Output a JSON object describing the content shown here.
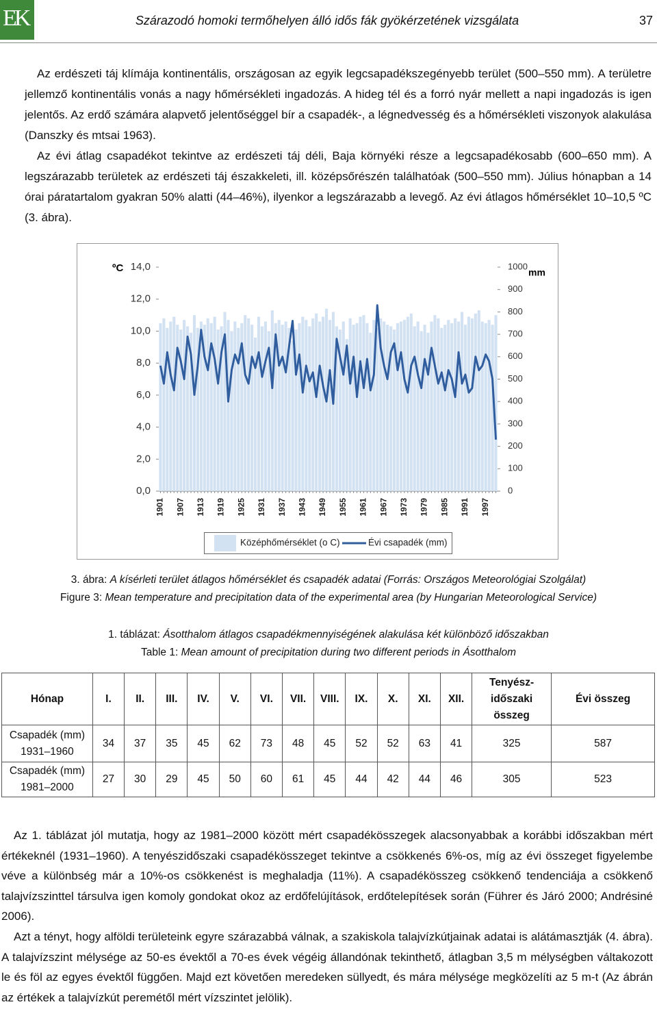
{
  "header": {
    "logo": "EK",
    "title": "Szárazodó homoki termőhelyen álló idős fák gyökérzetének vizsgálata",
    "page": "37"
  },
  "paragraphs_top": [
    "Az erdészeti táj klímája kontinentális, országosan az egyik legcsapadékszegényebb terület (500–550 mm). A területre jellemző kontinentális vonás a nagy hőmérsékleti ingadozás. A hideg tél és a forró nyár mellett a napi ingadozás is igen jelentős. Az erdő számára alapvető jelentőséggel bír a csapadék-, a légnedvesség és a hőmérsékleti viszonyok alakulása (Danszky és mtsai 1963).",
    "Az évi átlag csapadékot tekintve az erdészeti táj déli, Baja környéki része a legcsapadékosabb (600–650 mm). A legszárazabb területek az erdészeti táj északkeleti, ill. középsőrészén találhatóak (500–550 mm). Július hónapban a 14 órai páratartalom gyakran 50% alatti (44–46%), ilyenkor a legszárazabb a levegő. Az évi átlagos hőmérséklet 10–10,5 ºC (3. ábra)."
  ],
  "chart_data": {
    "type": "bar",
    "ylabel": "ºC",
    "y2label": "mm",
    "categories": [
      1901,
      null,
      null,
      null,
      null,
      null,
      1907,
      null,
      null,
      null,
      null,
      null,
      1913,
      null,
      null,
      null,
      null,
      null,
      1919,
      null,
      null,
      null,
      null,
      null,
      1925,
      null,
      null,
      null,
      null,
      null,
      1931,
      null,
      null,
      null,
      null,
      null,
      1937,
      null,
      null,
      null,
      null,
      null,
      1943,
      null,
      null,
      null,
      null,
      null,
      1949,
      null,
      null,
      null,
      null,
      null,
      1955,
      null,
      null,
      null,
      null,
      null,
      1961,
      null,
      null,
      null,
      null,
      null,
      1967,
      null,
      null,
      null,
      null,
      null,
      1973,
      null,
      null,
      null,
      null,
      null,
      1979,
      null,
      null,
      null,
      null,
      null,
      1985,
      null,
      null,
      null,
      null,
      null,
      1991,
      null,
      null,
      null,
      null,
      null,
      1997,
      null,
      null,
      null
    ],
    "series": [
      {
        "name": "Középhőmérséklet (o C)",
        "color": "#d3e2f2",
        "values": [
          10.5,
          10.8,
          10.2,
          10.6,
          10.9,
          10.4,
          10.1,
          10.7,
          10.3,
          9.9,
          11.0,
          10.2,
          10.6,
          10.4,
          10.8,
          10.5,
          10.9,
          10.1,
          10.3,
          11.2,
          10.7,
          10.0,
          10.6,
          10.2,
          10.5,
          11.0,
          10.8,
          10.4,
          9.6,
          10.9,
          10.3,
          10.6,
          10.0,
          11.3,
          10.5,
          10.7,
          10.4,
          10.6,
          10.2,
          9.4,
          10.1,
          10.5,
          10.9,
          10.7,
          10.3,
          10.8,
          11.1,
          10.6,
          10.9,
          11.4,
          10.7,
          11.2,
          10.3,
          10.1,
          10.6,
          9.5,
          10.8,
          10.4,
          10.5,
          10.9,
          11.0,
          10.5,
          9.9,
          10.7,
          10.2,
          10.8,
          10.6,
          10.4,
          10.3,
          10.1,
          10.5,
          10.6,
          10.7,
          10.9,
          11.1,
          10.3,
          10.6,
          10.0,
          10.4,
          9.9,
          10.6,
          11.0,
          10.8,
          10.2,
          10.4,
          10.7,
          10.5,
          10.8,
          10.6,
          11.2,
          10.4,
          10.9,
          10.8,
          11.1,
          11.3,
          10.6,
          10.5,
          10.7,
          10.4,
          11.0
        ]
      },
      {
        "name": "Évi csapadék (mm)",
        "color": "#2f5d9e",
        "type": "line",
        "axis": "y2",
        "values": [
          560,
          480,
          620,
          520,
          450,
          640,
          580,
          500,
          690,
          610,
          430,
          560,
          720,
          600,
          540,
          660,
          590,
          480,
          620,
          700,
          400,
          540,
          610,
          570,
          660,
          520,
          480,
          600,
          550,
          620,
          510,
          580,
          640,
          460,
          700,
          560,
          600,
          530,
          650,
          760,
          520,
          610,
          440,
          560,
          490,
          530,
          420,
          560,
          470,
          400,
          540,
          390,
          680,
          600,
          520,
          650,
          480,
          600,
          420,
          580,
          460,
          590,
          450,
          520,
          830,
          640,
          560,
          500,
          620,
          660,
          540,
          620,
          500,
          440,
          560,
          600,
          520,
          460,
          590,
          520,
          640,
          560,
          480,
          530,
          450,
          540,
          500,
          420,
          620,
          480,
          520,
          440,
          460,
          600,
          540,
          560,
          610,
          580,
          500,
          230
        ]
      }
    ],
    "ylim": [
      0,
      14
    ],
    "yticks": [
      {
        "value": 0,
        "label": "0,0"
      },
      {
        "value": 2,
        "label": "2,0"
      },
      {
        "value": 4,
        "label": "4,0"
      },
      {
        "value": 6,
        "label": "6,0"
      },
      {
        "value": 8,
        "label": "8,0"
      },
      {
        "value": 10,
        "label": "10,0"
      },
      {
        "value": 12,
        "label": "12,0"
      },
      {
        "value": 14,
        "label": "14,0"
      }
    ],
    "y2lim": [
      0,
      1000
    ],
    "y2ticks": [
      0,
      100,
      200,
      300,
      400,
      500,
      600,
      700,
      800,
      900,
      1000
    ],
    "legend": "bottom",
    "grid": false
  },
  "figure_caption": {
    "label": "3. ábra:",
    "text": "A kísérleti terület átlagos hőmérséklet és csapadék adatai (Forrás: Országos Meteorológiai Szolgálat)",
    "label_en": "Figure 3:",
    "text_en": "Mean temperature and precipitation data of the experimental area (by Hungarian Meteorological Service)"
  },
  "table": {
    "caption": {
      "label": "1. táblázat:",
      "text": "Ásotthalom átlagos csapadékmennyiségének alakulása két különböző időszakban",
      "label_en": "Table 1:",
      "text_en": "Mean amount of precipitation during two different periods in Ásotthalom"
    },
    "header": [
      "Hónap",
      "I.",
      "II.",
      "III.",
      "IV.",
      "V.",
      "VI.",
      "VII.",
      "VIII.",
      "IX.",
      "X.",
      "XI.",
      "XII.",
      [
        "Tenyész-",
        "időszaki",
        "összeg"
      ],
      "Évi összeg"
    ],
    "rows": [
      {
        "label": [
          "Csapadék (mm)",
          "1931–1960"
        ],
        "values": [
          34,
          37,
          35,
          45,
          62,
          73,
          48,
          45,
          52,
          52,
          63,
          41
        ],
        "season": 325,
        "year": 587
      },
      {
        "label": [
          "Csapadék (mm)",
          "1981–2000"
        ],
        "values": [
          27,
          30,
          29,
          45,
          50,
          60,
          61,
          45,
          44,
          42,
          44,
          46
        ],
        "season": 305,
        "year": 523
      }
    ]
  },
  "paragraphs_bottom": [
    "Az 1. táblázat jól mutatja, hogy az 1981–2000 között mért csapadékösszegek alacsonyabbak a korábbi időszakban mért értékeknél (1931–1960). A tenyészidőszaki csapadékösszeget tekintve a csökkenés 6%-os, míg az évi összeget figyelembe véve a különbség már a 10%-os csökkenést is meghaladja (11%). A csapadékösszeg csökkenő tendenciája a csökkenő talajvízszinttel társulva igen komoly gondokat okoz az erdőfelújítások, erdőtelepítések során (Führer és Járó 2000; Andrésiné 2006).",
    "Azt a tényt, hogy alföldi területeink egyre szárazabbá válnak, a szakiskola talajvízkútjainak adatai is alátámasztják (4. ábra). A talajvízszint mélysége az 50-es évektől a 70-es évek végéig állandónak tekinthető, átlagban 3,5 m mélységben váltakozott le és föl az egyes évektől függően. Majd ezt követően meredeken süllyedt, és mára mélysége megközelíti az 5 m-t (Az ábrán az értékek a talajvízkút peremétől mért vízszintet jelölik)."
  ]
}
